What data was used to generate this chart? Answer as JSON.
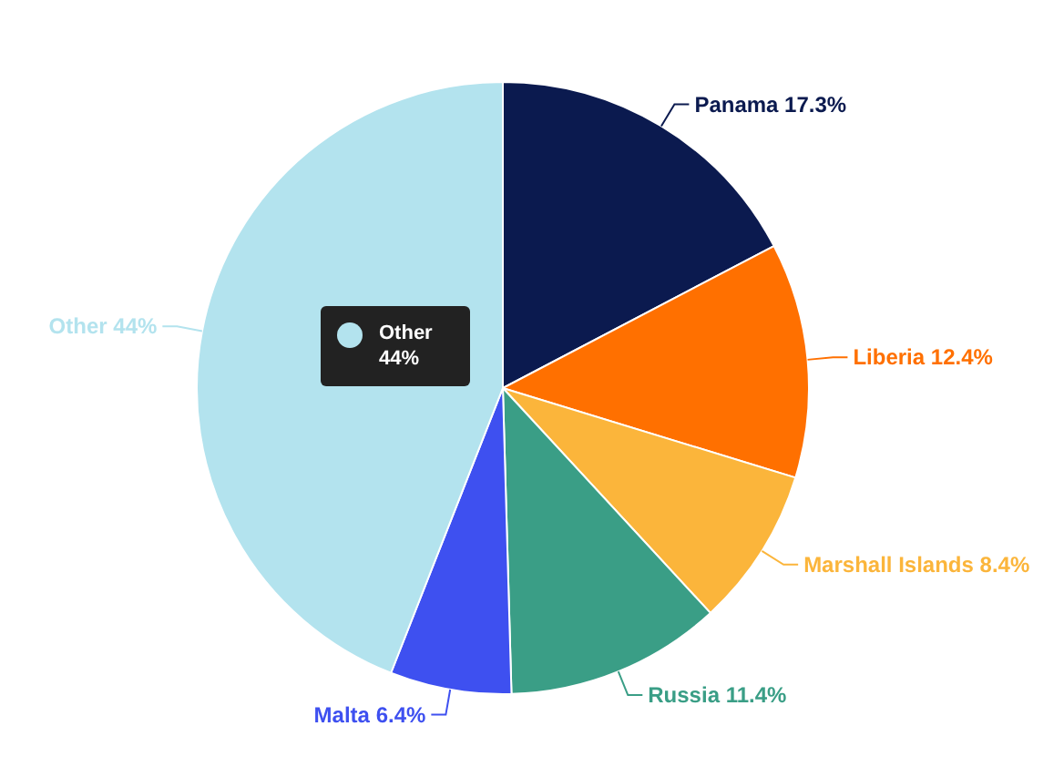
{
  "chart_data": {
    "type": "pie",
    "categories": [
      "Panama",
      "Liberia",
      "Marshall Islands",
      "Russia",
      "Malta",
      "Other"
    ],
    "values": [
      17.3,
      12.4,
      8.4,
      11.4,
      6.4,
      44
    ],
    "colors": [
      "#0b1a4f",
      "#ff7000",
      "#fbb53b",
      "#3a9e86",
      "#3e50f0",
      "#b3e3ee"
    ],
    "value_labels": [
      "17.3%",
      "12.4%",
      "8.4%",
      "11.4%",
      "6.4%",
      "44%"
    ],
    "annotations": [
      "Other\n44%"
    ]
  }
}
